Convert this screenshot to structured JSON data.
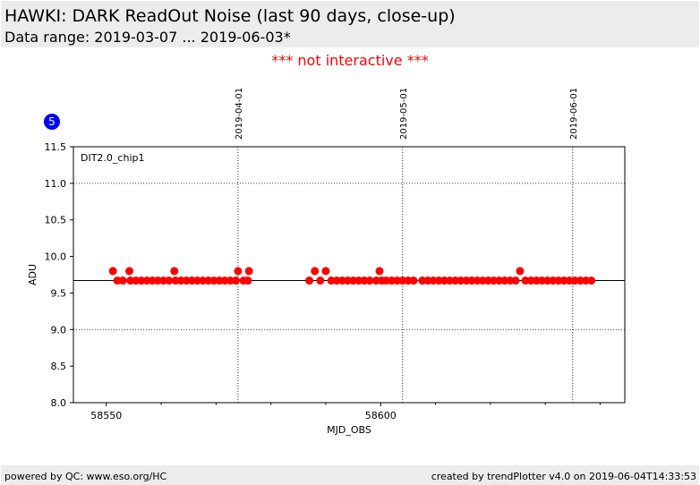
{
  "header": {
    "title": "HAWKI: DARK ReadOut Noise (last 90 days, close-up)",
    "subtitle": "Data range: 2019-03-07 ... 2019-06-03*"
  },
  "notice": "*** not interactive ***",
  "badge": "5",
  "footer": {
    "left": "powered by QC: www.eso.org/HC",
    "right": "created by trendPlotter v4.0 on 2019-06-04T14:33:53"
  },
  "colors": {
    "points": "#ff0000",
    "badge": "#0000ff",
    "notice": "#ff0000",
    "banner_bg": "#ececec"
  },
  "chart_data": {
    "type": "scatter",
    "xlabel": "MJD_OBS",
    "ylabel": "ADU",
    "xlim": [
      58544,
      58644.5
    ],
    "ylim": [
      8.0,
      11.5
    ],
    "xticks": [
      58550,
      58600
    ],
    "xminor": [
      58560,
      58570,
      58580,
      58590,
      58610,
      58620,
      58630,
      58640
    ],
    "yticks": [
      "8.0",
      "8.5",
      "9.0",
      "9.5",
      "10.0",
      "10.5",
      "11.0",
      "11.5"
    ],
    "grid": "dotted horizontal at 9.0 and 11.0; dotted vertical at month markers",
    "series_label": "DIT2.0_chip1",
    "reference_line": 9.67,
    "date_markers": [
      {
        "label": "2019-04-01",
        "mjd": 58574
      },
      {
        "label": "2019-05-01",
        "mjd": 58604
      },
      {
        "label": "2019-06-01",
        "mjd": 58635
      }
    ],
    "points": [
      {
        "x": 58551.2,
        "y": 9.8
      },
      {
        "x": 58552.0,
        "y": 9.67
      },
      {
        "x": 58553.0,
        "y": 9.67
      },
      {
        "x": 58554.2,
        "y": 9.8
      },
      {
        "x": 58554.4,
        "y": 9.67
      },
      {
        "x": 58555.4,
        "y": 9.67
      },
      {
        "x": 58556.4,
        "y": 9.67
      },
      {
        "x": 58557.4,
        "y": 9.67
      },
      {
        "x": 58558.4,
        "y": 9.67
      },
      {
        "x": 58559.4,
        "y": 9.67
      },
      {
        "x": 58560.4,
        "y": 9.67
      },
      {
        "x": 58561.4,
        "y": 9.67
      },
      {
        "x": 58562.4,
        "y": 9.8
      },
      {
        "x": 58562.6,
        "y": 9.67
      },
      {
        "x": 58563.6,
        "y": 9.67
      },
      {
        "x": 58564.6,
        "y": 9.67
      },
      {
        "x": 58565.6,
        "y": 9.67
      },
      {
        "x": 58566.6,
        "y": 9.67
      },
      {
        "x": 58567.6,
        "y": 9.67
      },
      {
        "x": 58568.6,
        "y": 9.67
      },
      {
        "x": 58569.6,
        "y": 9.67
      },
      {
        "x": 58570.6,
        "y": 9.67
      },
      {
        "x": 58571.6,
        "y": 9.67
      },
      {
        "x": 58572.6,
        "y": 9.67
      },
      {
        "x": 58573.6,
        "y": 9.67
      },
      {
        "x": 58574.0,
        "y": 9.8
      },
      {
        "x": 58575.0,
        "y": 9.67
      },
      {
        "x": 58575.8,
        "y": 9.67
      },
      {
        "x": 58576.0,
        "y": 9.8
      },
      {
        "x": 58587.0,
        "y": 9.67
      },
      {
        "x": 58588.0,
        "y": 9.8
      },
      {
        "x": 58589.0,
        "y": 9.67
      },
      {
        "x": 58590.0,
        "y": 9.8
      },
      {
        "x": 58591.0,
        "y": 9.67
      },
      {
        "x": 58592.0,
        "y": 9.67
      },
      {
        "x": 58593.0,
        "y": 9.67
      },
      {
        "x": 58594.0,
        "y": 9.67
      },
      {
        "x": 58595.0,
        "y": 9.67
      },
      {
        "x": 58596.0,
        "y": 9.67
      },
      {
        "x": 58597.0,
        "y": 9.67
      },
      {
        "x": 58598.0,
        "y": 9.67
      },
      {
        "x": 58599.2,
        "y": 9.67
      },
      {
        "x": 58600.2,
        "y": 9.67
      },
      {
        "x": 58599.8,
        "y": 9.8
      },
      {
        "x": 58601.0,
        "y": 9.67
      },
      {
        "x": 58602.0,
        "y": 9.67
      },
      {
        "x": 58603.0,
        "y": 9.67
      },
      {
        "x": 58604.0,
        "y": 9.67
      },
      {
        "x": 58605.0,
        "y": 9.67
      },
      {
        "x": 58606.0,
        "y": 9.67
      },
      {
        "x": 58607.6,
        "y": 9.67
      },
      {
        "x": 58608.6,
        "y": 9.67
      },
      {
        "x": 58609.6,
        "y": 9.67
      },
      {
        "x": 58610.6,
        "y": 9.67
      },
      {
        "x": 58611.6,
        "y": 9.67
      },
      {
        "x": 58612.6,
        "y": 9.67
      },
      {
        "x": 58613.6,
        "y": 9.67
      },
      {
        "x": 58614.6,
        "y": 9.67
      },
      {
        "x": 58615.6,
        "y": 9.67
      },
      {
        "x": 58616.6,
        "y": 9.67
      },
      {
        "x": 58617.6,
        "y": 9.67
      },
      {
        "x": 58618.6,
        "y": 9.67
      },
      {
        "x": 58619.6,
        "y": 9.67
      },
      {
        "x": 58620.6,
        "y": 9.67
      },
      {
        "x": 58621.6,
        "y": 9.67
      },
      {
        "x": 58622.6,
        "y": 9.67
      },
      {
        "x": 58623.6,
        "y": 9.67
      },
      {
        "x": 58624.6,
        "y": 9.67
      },
      {
        "x": 58625.4,
        "y": 9.8
      },
      {
        "x": 58626.4,
        "y": 9.67
      },
      {
        "x": 58627.4,
        "y": 9.67
      },
      {
        "x": 58628.4,
        "y": 9.67
      },
      {
        "x": 58629.4,
        "y": 9.67
      },
      {
        "x": 58630.4,
        "y": 9.67
      },
      {
        "x": 58631.4,
        "y": 9.67
      },
      {
        "x": 58632.4,
        "y": 9.67
      },
      {
        "x": 58633.4,
        "y": 9.67
      },
      {
        "x": 58634.4,
        "y": 9.67
      },
      {
        "x": 58635.4,
        "y": 9.67
      },
      {
        "x": 58636.4,
        "y": 9.67
      },
      {
        "x": 58637.4,
        "y": 9.67
      },
      {
        "x": 58638.4,
        "y": 9.67
      }
    ]
  }
}
